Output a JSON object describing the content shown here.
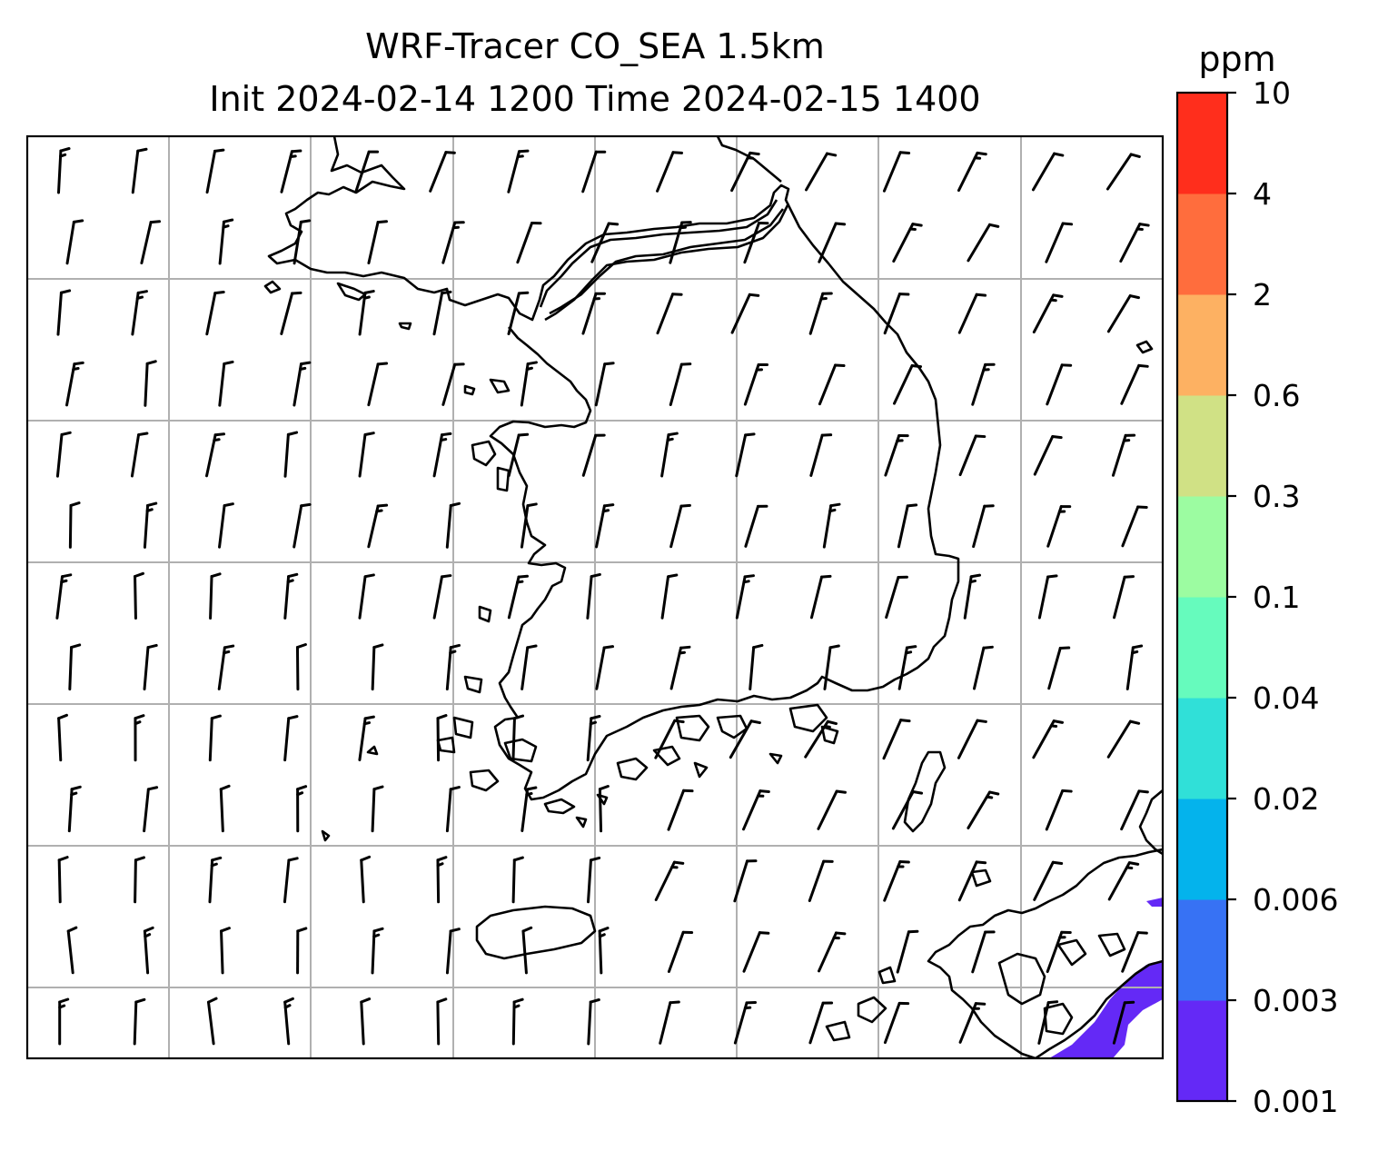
{
  "title": {
    "line1": "WRF-Tracer CO_SEA 1.5km",
    "line2": "Init 2024-02-14 1200 Time 2024-02-15 1400"
  },
  "colorbar": {
    "unit": "ppm",
    "levels": [
      "0.001",
      "0.003",
      "0.006",
      "0.02",
      "0.04",
      "0.1",
      "0.3",
      "0.6",
      "2",
      "4",
      "10"
    ],
    "colors": [
      "#6429f6",
      "#3772f4",
      "#04b3ec",
      "#30e0d8",
      "#66fbbd",
      "#9cfca1",
      "#d0e185",
      "#fdb162",
      "#ff6d3d",
      "#ff2e1c"
    ]
  },
  "map": {
    "features": [
      "coastline",
      "gridlines",
      "wind-barbs",
      "tracer-fill"
    ],
    "tracer_fill_color": "#6429f6"
  }
}
